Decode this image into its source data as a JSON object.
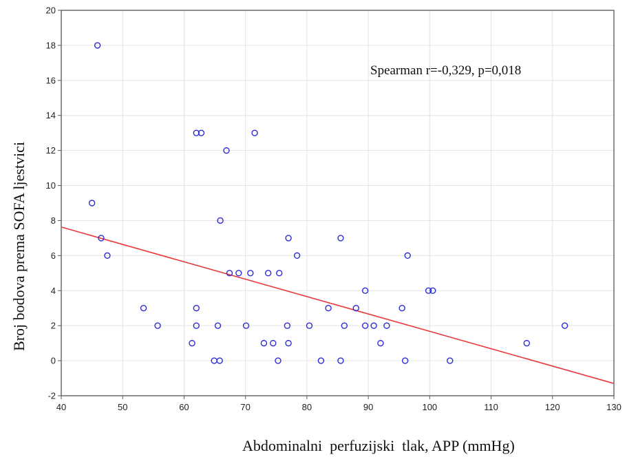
{
  "chart_data": {
    "type": "scatter",
    "xlabel": "Abdominalni  perfuzijski  tlak, APP (mmHg)",
    "ylabel": "Broj bodova prema SOFA ljestvici",
    "xlim": [
      40,
      130
    ],
    "ylim": [
      -2,
      20
    ],
    "x_ticks": [
      "40",
      "50",
      "60",
      "70",
      "80",
      "90",
      "100",
      "110",
      "120",
      "130"
    ],
    "y_ticks": [
      "-2",
      "0",
      "2",
      "4",
      "6",
      "8",
      "10",
      "12",
      "14",
      "16",
      "18",
      "20"
    ],
    "grid": true,
    "annotation": "Spearman r=-0,329, p=0,018",
    "marker_color": "#2b2bd6",
    "line_color": "#e8393c",
    "points": [
      {
        "x": 45.9,
        "y": 18
      },
      {
        "x": 45.0,
        "y": 9
      },
      {
        "x": 46.5,
        "y": 7
      },
      {
        "x": 47.5,
        "y": 6
      },
      {
        "x": 53.4,
        "y": 3
      },
      {
        "x": 55.7,
        "y": 2
      },
      {
        "x": 61.3,
        "y": 1
      },
      {
        "x": 62.0,
        "y": 13
      },
      {
        "x": 62.8,
        "y": 13
      },
      {
        "x": 62.0,
        "y": 3
      },
      {
        "x": 62.0,
        "y": 2
      },
      {
        "x": 64.9,
        "y": 0
      },
      {
        "x": 65.5,
        "y": 2
      },
      {
        "x": 65.8,
        "y": 0
      },
      {
        "x": 65.9,
        "y": 8
      },
      {
        "x": 66.9,
        "y": 12
      },
      {
        "x": 67.4,
        "y": 5
      },
      {
        "x": 68.9,
        "y": 5
      },
      {
        "x": 70.1,
        "y": 2
      },
      {
        "x": 70.8,
        "y": 5
      },
      {
        "x": 71.5,
        "y": 13
      },
      {
        "x": 73.0,
        "y": 1
      },
      {
        "x": 73.7,
        "y": 5
      },
      {
        "x": 74.5,
        "y": 1
      },
      {
        "x": 75.3,
        "y": 0
      },
      {
        "x": 75.5,
        "y": 5
      },
      {
        "x": 76.8,
        "y": 2
      },
      {
        "x": 77.0,
        "y": 1
      },
      {
        "x": 77.0,
        "y": 7
      },
      {
        "x": 78.4,
        "y": 6
      },
      {
        "x": 80.4,
        "y": 2
      },
      {
        "x": 82.3,
        "y": 0
      },
      {
        "x": 83.5,
        "y": 3
      },
      {
        "x": 85.5,
        "y": 0
      },
      {
        "x": 85.5,
        "y": 7
      },
      {
        "x": 86.1,
        "y": 2
      },
      {
        "x": 88.0,
        "y": 3
      },
      {
        "x": 89.5,
        "y": 2
      },
      {
        "x": 89.5,
        "y": 4
      },
      {
        "x": 90.9,
        "y": 2
      },
      {
        "x": 92.0,
        "y": 1
      },
      {
        "x": 93.0,
        "y": 2
      },
      {
        "x": 95.5,
        "y": 3
      },
      {
        "x": 96.0,
        "y": 0
      },
      {
        "x": 96.4,
        "y": 6
      },
      {
        "x": 99.8,
        "y": 4
      },
      {
        "x": 100.5,
        "y": 4
      },
      {
        "x": 103.3,
        "y": 0
      },
      {
        "x": 115.8,
        "y": 1
      },
      {
        "x": 122.0,
        "y": 2
      }
    ],
    "regression": {
      "x": [
        40,
        130
      ],
      "y": [
        7.63,
        -1.3
      ]
    }
  }
}
